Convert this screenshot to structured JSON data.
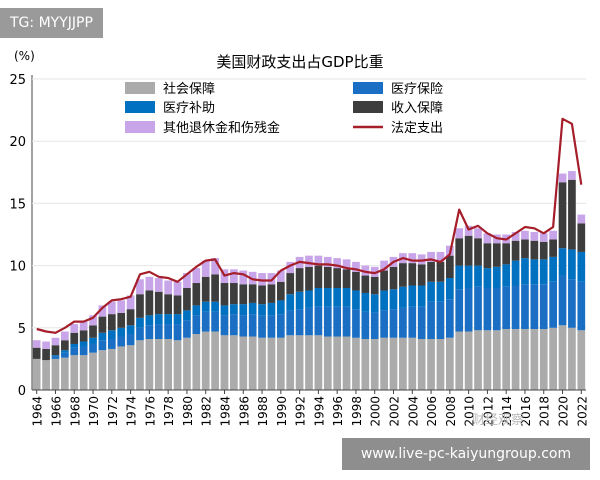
{
  "overlay": {
    "tag": "TG: MYYJJPP",
    "url": "www.live-pc-kaiyungroup.com",
    "watermark": "财经观察"
  },
  "chart_data": {
    "type": "bar",
    "stacked": true,
    "title": "美国财政支出占GDP比重",
    "ylabel": "(%)",
    "xlabel": "",
    "ylim": [
      0,
      25
    ],
    "yticks": [
      0,
      5,
      10,
      15,
      20,
      25
    ],
    "categories": [
      1964,
      1965,
      1966,
      1967,
      1968,
      1969,
      1970,
      1971,
      1972,
      1973,
      1974,
      1975,
      1976,
      1977,
      1978,
      1979,
      1980,
      1981,
      1982,
      1983,
      1984,
      1985,
      1986,
      1987,
      1988,
      1989,
      1990,
      1991,
      1992,
      1993,
      1994,
      1995,
      1996,
      1997,
      1998,
      1999,
      2000,
      2001,
      2002,
      2003,
      2004,
      2005,
      2006,
      2007,
      2008,
      2009,
      2010,
      2011,
      2012,
      2013,
      2014,
      2015,
      2016,
      2017,
      2018,
      2019,
      2020,
      2021,
      2022
    ],
    "xtick_labels": [
      "1964",
      "1966",
      "1968",
      "1970",
      "1972",
      "1974",
      "1976",
      "1978",
      "1980",
      "1982",
      "1984",
      "1986",
      "1988",
      "1990",
      "1992",
      "1994",
      "1996",
      "1998",
      "2000",
      "2002",
      "2004",
      "2006",
      "2008",
      "2010",
      "2012",
      "2014",
      "2016",
      "2018",
      "2020",
      "2022"
    ],
    "legend": [
      "社会保障",
      "医疗保险",
      "医疗补助",
      "收入保障",
      "其他退休金和伤残金",
      "法定支出"
    ],
    "series": [
      {
        "name": "社会保障",
        "type": "bar",
        "color": "#ababab",
        "values": [
          2.5,
          2.4,
          2.5,
          2.6,
          2.8,
          2.8,
          3.0,
          3.2,
          3.3,
          3.5,
          3.6,
          4.0,
          4.1,
          4.1,
          4.1,
          4.0,
          4.2,
          4.5,
          4.7,
          4.7,
          4.4,
          4.4,
          4.3,
          4.3,
          4.2,
          4.2,
          4.2,
          4.4,
          4.4,
          4.4,
          4.4,
          4.3,
          4.3,
          4.3,
          4.2,
          4.1,
          4.1,
          4.2,
          4.2,
          4.2,
          4.2,
          4.1,
          4.1,
          4.1,
          4.2,
          4.7,
          4.7,
          4.8,
          4.8,
          4.8,
          4.9,
          4.9,
          4.9,
          4.9,
          4.9,
          5.0,
          5.2,
          5.0,
          4.8
        ]
      },
      {
        "name": "医疗保险",
        "type": "bar",
        "color": "#1a6fc4",
        "values": [
          0,
          0,
          0.2,
          0.4,
          0.6,
          0.7,
          0.7,
          0.8,
          0.8,
          0.8,
          0.9,
          1.0,
          1.1,
          1.2,
          1.2,
          1.3,
          1.4,
          1.5,
          1.6,
          1.6,
          1.6,
          1.7,
          1.7,
          1.8,
          1.8,
          1.8,
          1.9,
          2.0,
          2.1,
          2.2,
          2.3,
          2.4,
          2.4,
          2.4,
          2.3,
          2.2,
          2.1,
          2.2,
          2.3,
          2.4,
          2.5,
          2.6,
          3.0,
          3.0,
          3.1,
          3.4,
          3.5,
          3.5,
          3.4,
          3.4,
          3.4,
          3.5,
          3.6,
          3.6,
          3.6,
          3.7,
          4.0,
          3.9,
          3.9
        ]
      },
      {
        "name": "医疗补助",
        "type": "bar",
        "color": "#0070c0",
        "values": [
          0,
          0,
          0.1,
          0.2,
          0.3,
          0.4,
          0.5,
          0.6,
          0.7,
          0.7,
          0.7,
          0.8,
          0.8,
          0.8,
          0.8,
          0.8,
          0.8,
          0.8,
          0.8,
          0.8,
          0.8,
          0.8,
          0.9,
          0.9,
          0.9,
          1.0,
          1.1,
          1.3,
          1.4,
          1.4,
          1.5,
          1.5,
          1.5,
          1.5,
          1.5,
          1.5,
          1.5,
          1.6,
          1.6,
          1.7,
          1.7,
          1.7,
          1.6,
          1.6,
          1.7,
          1.9,
          1.8,
          1.7,
          1.6,
          1.7,
          1.8,
          2.0,
          2.1,
          2.0,
          2.0,
          2.0,
          2.2,
          2.4,
          2.4
        ]
      },
      {
        "name": "收入保障",
        "type": "bar",
        "color": "#3d3d3d",
        "values": [
          0.9,
          0.9,
          0.8,
          0.8,
          0.9,
          0.9,
          1.0,
          1.3,
          1.3,
          1.2,
          1.3,
          1.9,
          2.0,
          1.8,
          1.6,
          1.5,
          1.8,
          1.8,
          2.0,
          2.2,
          1.8,
          1.7,
          1.6,
          1.5,
          1.5,
          1.5,
          1.5,
          1.7,
          1.9,
          1.9,
          1.8,
          1.7,
          1.6,
          1.5,
          1.5,
          1.4,
          1.4,
          1.6,
          1.8,
          1.9,
          1.8,
          1.7,
          1.6,
          1.6,
          1.8,
          2.2,
          2.4,
          2.2,
          2.0,
          1.9,
          1.7,
          1.6,
          1.5,
          1.5,
          1.4,
          1.4,
          5.3,
          5.6,
          2.3
        ]
      },
      {
        "name": "其他退休金和伤残金",
        "type": "bar",
        "color": "#c8a5e8",
        "values": [
          0.6,
          0.6,
          0.6,
          0.7,
          0.7,
          0.7,
          0.8,
          0.9,
          1.0,
          1.0,
          1.1,
          1.2,
          1.1,
          1.1,
          1.1,
          1.1,
          1.2,
          1.2,
          1.3,
          1.3,
          1.1,
          1.1,
          1.1,
          1.0,
          1.0,
          0.9,
          0.9,
          0.9,
          0.9,
          0.9,
          0.8,
          0.8,
          0.8,
          0.8,
          0.8,
          0.8,
          0.8,
          0.8,
          0.8,
          0.8,
          0.8,
          0.8,
          0.8,
          0.8,
          0.8,
          0.8,
          0.8,
          0.8,
          0.8,
          0.7,
          0.7,
          0.7,
          0.7,
          0.7,
          0.7,
          0.7,
          0.7,
          0.7,
          0.7
        ]
      },
      {
        "name": "法定支出",
        "type": "line",
        "color": "#a51e2a",
        "values": [
          4.9,
          4.7,
          4.6,
          5.0,
          5.5,
          5.5,
          5.8,
          6.6,
          7.2,
          7.3,
          7.5,
          9.3,
          9.5,
          9.1,
          9.0,
          8.7,
          9.3,
          9.9,
          10.4,
          10.5,
          9.2,
          9.4,
          9.3,
          8.9,
          8.8,
          8.8,
          9.6,
          10.0,
          10.3,
          10.2,
          10.1,
          10.1,
          10.0,
          9.8,
          9.7,
          9.5,
          9.4,
          9.7,
          10.3,
          10.6,
          10.4,
          10.4,
          10.5,
          10.3,
          10.9,
          14.5,
          12.9,
          13.2,
          12.6,
          12.2,
          12.1,
          12.6,
          13.1,
          13.0,
          12.6,
          13.1,
          21.8,
          21.4,
          16.5
        ]
      }
    ]
  }
}
